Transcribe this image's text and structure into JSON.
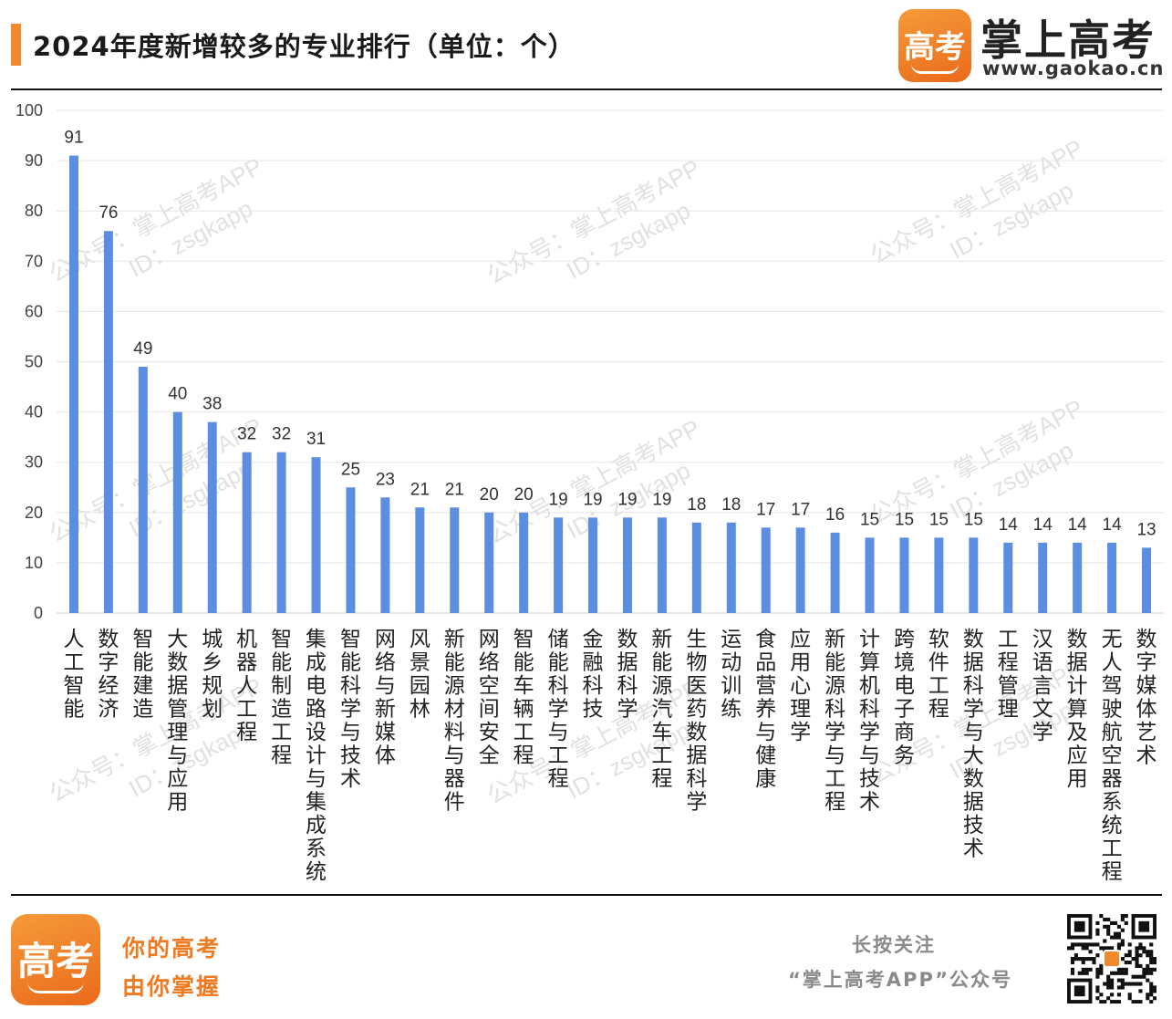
{
  "header": {
    "title": "2024年度新增较多的专业排行（单位：个）",
    "brand_name": "掌上高考",
    "brand_url": "www.gaokao.cn",
    "logo_text": "高考"
  },
  "watermark": {
    "line1": "公众号：掌上高考APP",
    "line2": "ID：zsgkapp"
  },
  "footer": {
    "logo_text": "高考",
    "slogan_line1": "你的高考",
    "slogan_line2": "由你掌握",
    "follow_line1": "长按关注",
    "follow_line2": "“掌上高考APP”公众号"
  },
  "colors": {
    "bar": "#5b8ee0",
    "accent": "#f08a2c",
    "grid": "#e6e6e6"
  },
  "chart_data": {
    "type": "bar",
    "title": "2024年度新增较多的专业排行（单位：个）",
    "ylim": [
      0,
      100
    ],
    "yticks": [
      0,
      10,
      20,
      30,
      40,
      50,
      60,
      70,
      80,
      90,
      100
    ],
    "grid": true,
    "data_labels": true,
    "categories": [
      "人工智能",
      "数字经济",
      "智能建造",
      "大数据管理与应用",
      "城乡规划",
      "机器人工程",
      "智能制造工程",
      "集成电路设计与集成系统",
      "智能科学与技术",
      "网络与新媒体",
      "风景园林",
      "新能源材料与器件",
      "网络空间安全",
      "智能车辆工程",
      "储能科学与工程",
      "金融科技",
      "数据科学",
      "新能源汽车工程",
      "生物医药数据科学",
      "运动训练",
      "食品营养与健康",
      "应用心理学",
      "新能源科学与工程",
      "计算机科学与技术",
      "跨境电子商务",
      "软件工程",
      "数据科学与大数据技术",
      "工程管理",
      "汉语言文学",
      "数据计算及应用",
      "无人驾驶航空器系统工程",
      "数字媒体艺术"
    ],
    "values": [
      91,
      76,
      49,
      40,
      38,
      32,
      32,
      31,
      25,
      23,
      21,
      21,
      20,
      20,
      19,
      19,
      19,
      19,
      18,
      18,
      17,
      17,
      16,
      15,
      15,
      15,
      15,
      14,
      14,
      14,
      14,
      13
    ]
  }
}
